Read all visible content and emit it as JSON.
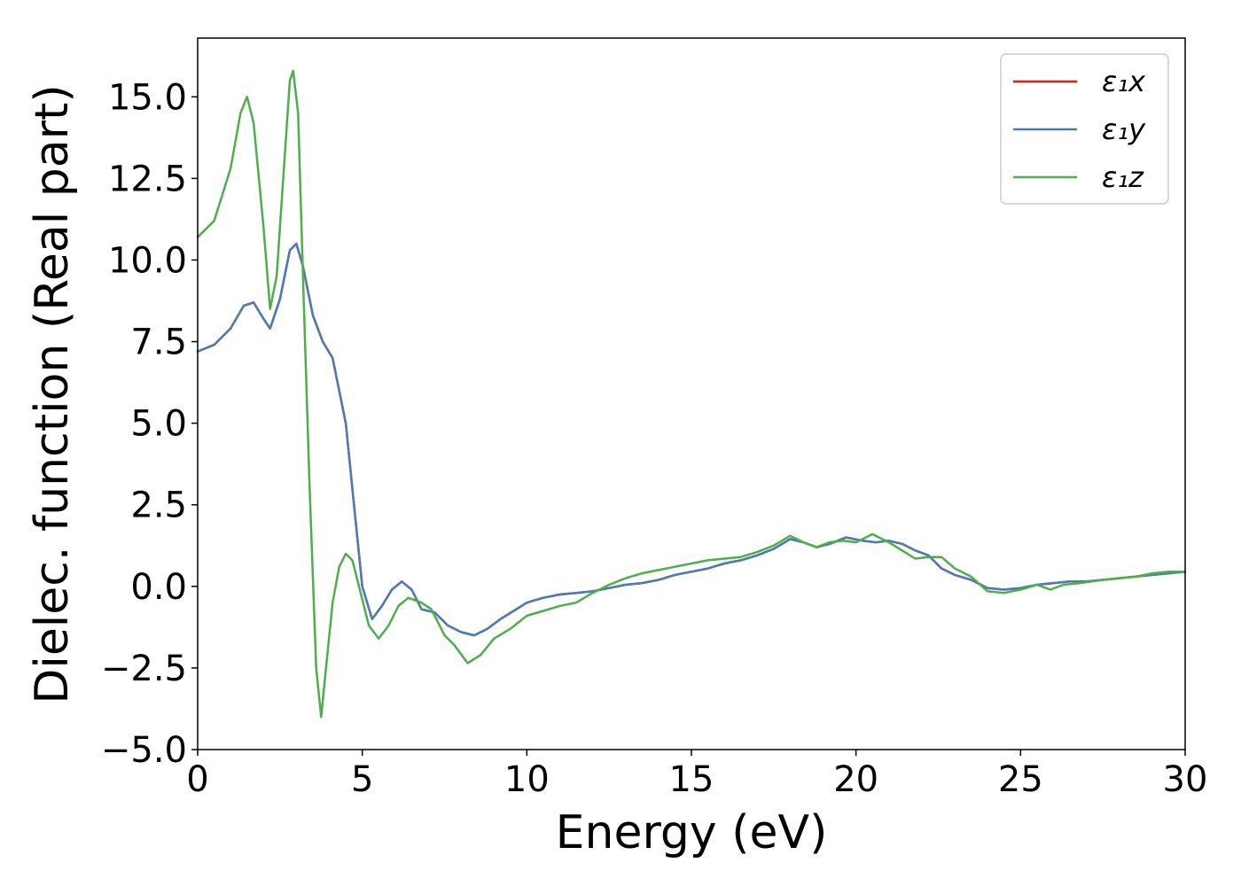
{
  "chart_data": {
    "type": "line",
    "title": "",
    "xlabel": "Energy (eV)",
    "ylabel": "Dielec. function (Real part)",
    "xlim": [
      0,
      30
    ],
    "ylim": [
      -5.0,
      16.8
    ],
    "x_ticks": [
      0,
      5,
      10,
      15,
      20,
      25,
      30
    ],
    "x_tick_labels": [
      "0",
      "5",
      "10",
      "15",
      "20",
      "25",
      "30"
    ],
    "y_ticks": [
      -5.0,
      -2.5,
      0.0,
      2.5,
      5.0,
      7.5,
      10.0,
      12.5,
      15.0
    ],
    "y_tick_labels": [
      "−5.0",
      "−2.5",
      "0.0",
      "2.5",
      "5.0",
      "7.5",
      "10.0",
      "12.5",
      "15.0"
    ],
    "grid": false,
    "legend_position": "top-right",
    "series": [
      {
        "name": "ε₁x",
        "color": "#e41a1c",
        "points": [
          [
            0,
            7.2
          ],
          [
            0.5,
            7.4
          ],
          [
            1.0,
            7.9
          ],
          [
            1.4,
            8.6
          ],
          [
            1.7,
            8.7
          ],
          [
            2.0,
            8.2
          ],
          [
            2.2,
            7.9
          ],
          [
            2.5,
            8.8
          ],
          [
            2.8,
            10.3
          ],
          [
            3.0,
            10.5
          ],
          [
            3.2,
            9.8
          ],
          [
            3.5,
            8.3
          ],
          [
            3.8,
            7.5
          ],
          [
            4.1,
            7.0
          ],
          [
            4.5,
            5.0
          ],
          [
            4.8,
            2.0
          ],
          [
            5.0,
            0.0
          ],
          [
            5.3,
            -1.0
          ],
          [
            5.6,
            -0.6
          ],
          [
            5.9,
            -0.1
          ],
          [
            6.2,
            0.15
          ],
          [
            6.5,
            -0.1
          ],
          [
            6.8,
            -0.7
          ],
          [
            7.2,
            -0.8
          ],
          [
            7.6,
            -1.2
          ],
          [
            8.0,
            -1.4
          ],
          [
            8.4,
            -1.5
          ],
          [
            8.8,
            -1.3
          ],
          [
            9.2,
            -1.0
          ],
          [
            9.6,
            -0.75
          ],
          [
            10.0,
            -0.5
          ],
          [
            10.5,
            -0.35
          ],
          [
            11.0,
            -0.25
          ],
          [
            11.5,
            -0.2
          ],
          [
            12.0,
            -0.15
          ],
          [
            12.5,
            -0.05
          ],
          [
            13.0,
            0.05
          ],
          [
            13.5,
            0.1
          ],
          [
            14.0,
            0.2
          ],
          [
            14.5,
            0.35
          ],
          [
            15.0,
            0.45
          ],
          [
            15.5,
            0.55
          ],
          [
            16.0,
            0.7
          ],
          [
            16.5,
            0.8
          ],
          [
            17.0,
            0.95
          ],
          [
            17.5,
            1.15
          ],
          [
            18.0,
            1.45
          ],
          [
            18.4,
            1.35
          ],
          [
            18.8,
            1.2
          ],
          [
            19.2,
            1.3
          ],
          [
            19.7,
            1.5
          ],
          [
            20.2,
            1.4
          ],
          [
            20.6,
            1.35
          ],
          [
            21.0,
            1.4
          ],
          [
            21.4,
            1.3
          ],
          [
            21.8,
            1.1
          ],
          [
            22.2,
            0.95
          ],
          [
            22.6,
            0.55
          ],
          [
            23.0,
            0.35
          ],
          [
            23.5,
            0.2
          ],
          [
            24.0,
            -0.05
          ],
          [
            24.5,
            -0.1
          ],
          [
            25.0,
            -0.05
          ],
          [
            25.5,
            0.05
          ],
          [
            26.0,
            0.1
          ],
          [
            26.5,
            0.15
          ],
          [
            27.0,
            0.15
          ],
          [
            27.5,
            0.2
          ],
          [
            28.0,
            0.25
          ],
          [
            28.5,
            0.3
          ],
          [
            29.0,
            0.35
          ],
          [
            29.5,
            0.4
          ],
          [
            30.0,
            0.45
          ]
        ]
      },
      {
        "name": "ε₁y",
        "color": "#4a7db8",
        "points": [
          [
            0,
            7.2
          ],
          [
            0.5,
            7.4
          ],
          [
            1.0,
            7.9
          ],
          [
            1.4,
            8.6
          ],
          [
            1.7,
            8.7
          ],
          [
            2.0,
            8.2
          ],
          [
            2.2,
            7.9
          ],
          [
            2.5,
            8.8
          ],
          [
            2.8,
            10.3
          ],
          [
            3.0,
            10.5
          ],
          [
            3.2,
            9.8
          ],
          [
            3.5,
            8.3
          ],
          [
            3.8,
            7.5
          ],
          [
            4.1,
            7.0
          ],
          [
            4.5,
            5.0
          ],
          [
            4.8,
            2.0
          ],
          [
            5.0,
            0.0
          ],
          [
            5.3,
            -1.0
          ],
          [
            5.6,
            -0.6
          ],
          [
            5.9,
            -0.1
          ],
          [
            6.2,
            0.15
          ],
          [
            6.5,
            -0.1
          ],
          [
            6.8,
            -0.7
          ],
          [
            7.2,
            -0.8
          ],
          [
            7.6,
            -1.2
          ],
          [
            8.0,
            -1.4
          ],
          [
            8.4,
            -1.5
          ],
          [
            8.8,
            -1.3
          ],
          [
            9.2,
            -1.0
          ],
          [
            9.6,
            -0.75
          ],
          [
            10.0,
            -0.5
          ],
          [
            10.5,
            -0.35
          ],
          [
            11.0,
            -0.25
          ],
          [
            11.5,
            -0.2
          ],
          [
            12.0,
            -0.15
          ],
          [
            12.5,
            -0.05
          ],
          [
            13.0,
            0.05
          ],
          [
            13.5,
            0.1
          ],
          [
            14.0,
            0.2
          ],
          [
            14.5,
            0.35
          ],
          [
            15.0,
            0.45
          ],
          [
            15.5,
            0.55
          ],
          [
            16.0,
            0.7
          ],
          [
            16.5,
            0.8
          ],
          [
            17.0,
            0.95
          ],
          [
            17.5,
            1.15
          ],
          [
            18.0,
            1.45
          ],
          [
            18.4,
            1.35
          ],
          [
            18.8,
            1.2
          ],
          [
            19.2,
            1.3
          ],
          [
            19.7,
            1.5
          ],
          [
            20.2,
            1.4
          ],
          [
            20.6,
            1.35
          ],
          [
            21.0,
            1.4
          ],
          [
            21.4,
            1.3
          ],
          [
            21.8,
            1.1
          ],
          [
            22.2,
            0.95
          ],
          [
            22.6,
            0.55
          ],
          [
            23.0,
            0.35
          ],
          [
            23.5,
            0.2
          ],
          [
            24.0,
            -0.05
          ],
          [
            24.5,
            -0.1
          ],
          [
            25.0,
            -0.05
          ],
          [
            25.5,
            0.05
          ],
          [
            26.0,
            0.1
          ],
          [
            26.5,
            0.15
          ],
          [
            27.0,
            0.15
          ],
          [
            27.5,
            0.2
          ],
          [
            28.0,
            0.25
          ],
          [
            28.5,
            0.3
          ],
          [
            29.0,
            0.35
          ],
          [
            29.5,
            0.4
          ],
          [
            30.0,
            0.45
          ]
        ]
      },
      {
        "name": "ε₁z",
        "color": "#4daf4a",
        "points": [
          [
            0,
            10.7
          ],
          [
            0.5,
            11.2
          ],
          [
            1.0,
            12.8
          ],
          [
            1.3,
            14.5
          ],
          [
            1.5,
            15.0
          ],
          [
            1.7,
            14.2
          ],
          [
            2.0,
            11.0
          ],
          [
            2.2,
            8.5
          ],
          [
            2.4,
            9.5
          ],
          [
            2.6,
            12.5
          ],
          [
            2.8,
            15.5
          ],
          [
            2.9,
            15.8
          ],
          [
            3.05,
            14.5
          ],
          [
            3.2,
            9.5
          ],
          [
            3.4,
            3.0
          ],
          [
            3.6,
            -2.5
          ],
          [
            3.75,
            -4.0
          ],
          [
            3.9,
            -2.5
          ],
          [
            4.1,
            -0.5
          ],
          [
            4.3,
            0.6
          ],
          [
            4.5,
            1.0
          ],
          [
            4.7,
            0.8
          ],
          [
            4.9,
            0.0
          ],
          [
            5.2,
            -1.2
          ],
          [
            5.5,
            -1.6
          ],
          [
            5.8,
            -1.2
          ],
          [
            6.1,
            -0.6
          ],
          [
            6.4,
            -0.35
          ],
          [
            6.8,
            -0.5
          ],
          [
            7.1,
            -0.7
          ],
          [
            7.5,
            -1.5
          ],
          [
            7.8,
            -1.8
          ],
          [
            8.2,
            -2.35
          ],
          [
            8.6,
            -2.1
          ],
          [
            9.0,
            -1.6
          ],
          [
            9.5,
            -1.3
          ],
          [
            10.0,
            -0.9
          ],
          [
            10.5,
            -0.75
          ],
          [
            11.0,
            -0.6
          ],
          [
            11.5,
            -0.5
          ],
          [
            12.0,
            -0.2
          ],
          [
            12.5,
            0.05
          ],
          [
            13.0,
            0.25
          ],
          [
            13.5,
            0.4
          ],
          [
            14.0,
            0.5
          ],
          [
            14.5,
            0.6
          ],
          [
            15.0,
            0.7
          ],
          [
            15.5,
            0.8
          ],
          [
            16.0,
            0.85
          ],
          [
            16.5,
            0.9
          ],
          [
            17.0,
            1.05
          ],
          [
            17.5,
            1.25
          ],
          [
            18.0,
            1.55
          ],
          [
            18.4,
            1.35
          ],
          [
            18.8,
            1.2
          ],
          [
            19.2,
            1.35
          ],
          [
            19.6,
            1.4
          ],
          [
            20.0,
            1.35
          ],
          [
            20.5,
            1.6
          ],
          [
            21.0,
            1.35
          ],
          [
            21.4,
            1.1
          ],
          [
            21.8,
            0.85
          ],
          [
            22.2,
            0.9
          ],
          [
            22.6,
            0.9
          ],
          [
            23.0,
            0.55
          ],
          [
            23.5,
            0.3
          ],
          [
            24.0,
            -0.15
          ],
          [
            24.5,
            -0.2
          ],
          [
            25.0,
            -0.1
          ],
          [
            25.5,
            0.05
          ],
          [
            25.9,
            -0.1
          ],
          [
            26.3,
            0.05
          ],
          [
            26.8,
            0.1
          ],
          [
            27.5,
            0.2
          ],
          [
            28.0,
            0.25
          ],
          [
            28.5,
            0.3
          ],
          [
            29.0,
            0.4
          ],
          [
            29.5,
            0.45
          ],
          [
            30.0,
            0.45
          ]
        ]
      }
    ]
  }
}
